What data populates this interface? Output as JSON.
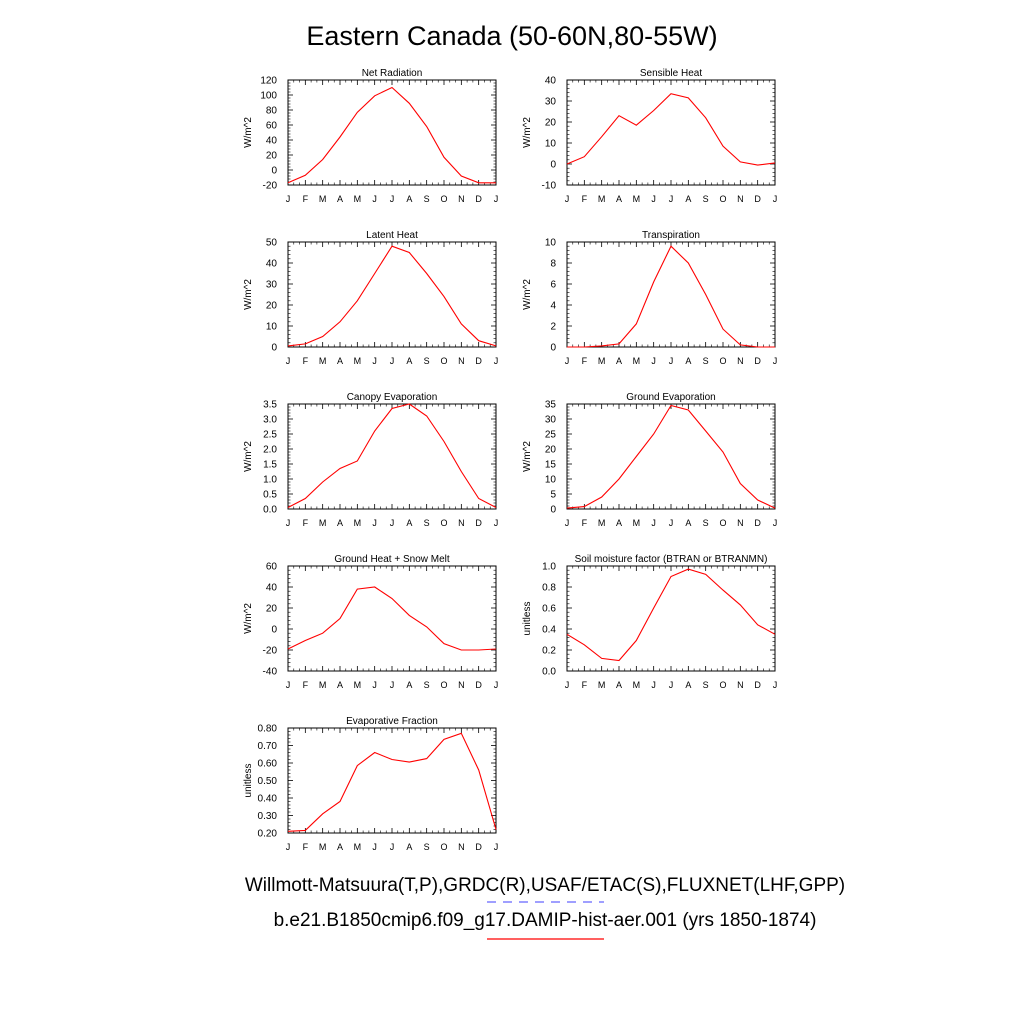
{
  "figure": {
    "title": "Eastern Canada (50-60N,80-55W)",
    "legend": {
      "observations": "Willmott-Matsuura(T,P),GRDC(R),USAF/ETAC(S),FLUXNET(LHF,GPP)",
      "observations_color": "#6666ff",
      "model": "b.e21.B1850cmip6.f09_g17.DAMIP-hist-aer.001 (yrs 1850-1874)",
      "model_color": "#ff0000"
    }
  },
  "chart_data": [
    {
      "type": "line",
      "title": "Net Radiation",
      "ylabel": "W/m^2",
      "x": [
        "J",
        "F",
        "M",
        "A",
        "M",
        "J",
        "J",
        "A",
        "S",
        "O",
        "N",
        "D",
        "J"
      ],
      "ylim": [
        -20,
        120
      ],
      "yticks": [
        "-20",
        "0",
        "20",
        "40",
        "60",
        "80",
        "100",
        "120"
      ],
      "series": [
        {
          "color": "#ff0000",
          "values": [
            -17,
            -7,
            14,
            44,
            77,
            99,
            110,
            89,
            58,
            17,
            -8,
            -17,
            -17
          ]
        }
      ]
    },
    {
      "type": "line",
      "title": "Sensible Heat",
      "ylabel": "W/m^2",
      "x": [
        "J",
        "F",
        "M",
        "A",
        "M",
        "J",
        "J",
        "A",
        "S",
        "O",
        "N",
        "D",
        "J"
      ],
      "ylim": [
        -10,
        40
      ],
      "yticks": [
        "-10",
        "0",
        "10",
        "20",
        "30",
        "40"
      ],
      "series": [
        {
          "color": "#ff0000",
          "values": [
            0,
            3.5,
            13,
            23,
            18.5,
            25.5,
            33.5,
            31.5,
            22,
            8.5,
            1,
            -0.5,
            0.5
          ]
        }
      ]
    },
    {
      "type": "line",
      "title": "Latent Heat",
      "ylabel": "W/m^2",
      "x": [
        "J",
        "F",
        "M",
        "A",
        "M",
        "J",
        "J",
        "A",
        "S",
        "O",
        "N",
        "D",
        "J"
      ],
      "ylim": [
        0,
        50
      ],
      "yticks": [
        "0",
        "10",
        "20",
        "30",
        "40",
        "50"
      ],
      "series": [
        {
          "color": "#ff0000",
          "values": [
            0.5,
            1.5,
            5,
            12,
            22,
            35,
            48,
            45,
            35,
            24,
            11,
            3,
            0.5
          ]
        }
      ]
    },
    {
      "type": "line",
      "title": "Transpiration",
      "ylabel": "W/m^2",
      "x": [
        "J",
        "F",
        "M",
        "A",
        "M",
        "J",
        "J",
        "A",
        "S",
        "O",
        "N",
        "D",
        "J"
      ],
      "ylim": [
        0,
        10
      ],
      "yticks": [
        "0",
        "2",
        "4",
        "6",
        "8",
        "10"
      ],
      "series": [
        {
          "color": "#ff0000",
          "values": [
            0,
            0,
            0.1,
            0.3,
            2.2,
            6.2,
            9.6,
            8,
            5,
            1.7,
            0.2,
            0,
            0
          ]
        }
      ]
    },
    {
      "type": "line",
      "title": "Canopy Evaporation",
      "ylabel": "W/m^2",
      "x": [
        "J",
        "F",
        "M",
        "A",
        "M",
        "J",
        "J",
        "A",
        "S",
        "O",
        "N",
        "D",
        "J"
      ],
      "ylim": [
        0,
        3.5
      ],
      "yticks": [
        "0.0",
        "0.5",
        "1.0",
        "1.5",
        "2.0",
        "2.5",
        "3.0",
        "3.5"
      ],
      "series": [
        {
          "color": "#ff0000",
          "values": [
            0.05,
            0.35,
            0.9,
            1.35,
            1.6,
            2.6,
            3.35,
            3.5,
            3.1,
            2.25,
            1.25,
            0.35,
            0.05
          ]
        }
      ]
    },
    {
      "type": "line",
      "title": "Ground Evaporation",
      "ylabel": "W/m^2",
      "x": [
        "J",
        "F",
        "M",
        "A",
        "M",
        "J",
        "J",
        "A",
        "S",
        "O",
        "N",
        "D",
        "J"
      ],
      "ylim": [
        0,
        35
      ],
      "yticks": [
        "0",
        "5",
        "10",
        "15",
        "20",
        "25",
        "30",
        "35"
      ],
      "series": [
        {
          "color": "#ff0000",
          "values": [
            0.3,
            0.8,
            4,
            10,
            17.5,
            25,
            34.5,
            33,
            26,
            19,
            8.5,
            3,
            0.3
          ]
        }
      ]
    },
    {
      "type": "line",
      "title": "Ground Heat + Snow Melt",
      "ylabel": "W/m^2",
      "x": [
        "J",
        "F",
        "M",
        "A",
        "M",
        "J",
        "J",
        "A",
        "S",
        "O",
        "N",
        "D",
        "J"
      ],
      "ylim": [
        -40,
        60
      ],
      "yticks": [
        "-40",
        "-20",
        "0",
        "20",
        "40",
        "60"
      ],
      "series": [
        {
          "color": "#ff0000",
          "values": [
            -19,
            -11,
            -4,
            10,
            38,
            40,
            29,
            13,
            2,
            -14,
            -20,
            -20,
            -19
          ]
        }
      ]
    },
    {
      "type": "line",
      "title": "Soil moisture factor (BTRAN or BTRANMN)",
      "ylabel": "unitless",
      "x": [
        "J",
        "F",
        "M",
        "A",
        "M",
        "J",
        "J",
        "A",
        "S",
        "O",
        "N",
        "D",
        "J"
      ],
      "ylim": [
        0,
        1
      ],
      "yticks": [
        "0.0",
        "0.2",
        "0.4",
        "0.6",
        "0.8",
        "1.0"
      ],
      "series": [
        {
          "color": "#ff0000",
          "values": [
            0.35,
            0.25,
            0.12,
            0.1,
            0.29,
            0.6,
            0.9,
            0.97,
            0.92,
            0.77,
            0.63,
            0.44,
            0.35
          ]
        }
      ]
    },
    {
      "type": "line",
      "title": "Evaporative Fraction",
      "ylabel": "unitless",
      "x": [
        "J",
        "F",
        "M",
        "A",
        "M",
        "J",
        "J",
        "A",
        "S",
        "O",
        "N",
        "D",
        "J"
      ],
      "ylim": [
        0.2,
        0.8
      ],
      "yticks": [
        "0.20",
        "0.30",
        "0.40",
        "0.50",
        "0.60",
        "0.70",
        "0.80"
      ],
      "series": [
        {
          "color": "#ff0000",
          "values": [
            0.21,
            0.215,
            0.31,
            0.38,
            0.585,
            0.66,
            0.62,
            0.605,
            0.625,
            0.735,
            0.77,
            0.56,
            0.22
          ]
        }
      ]
    }
  ]
}
